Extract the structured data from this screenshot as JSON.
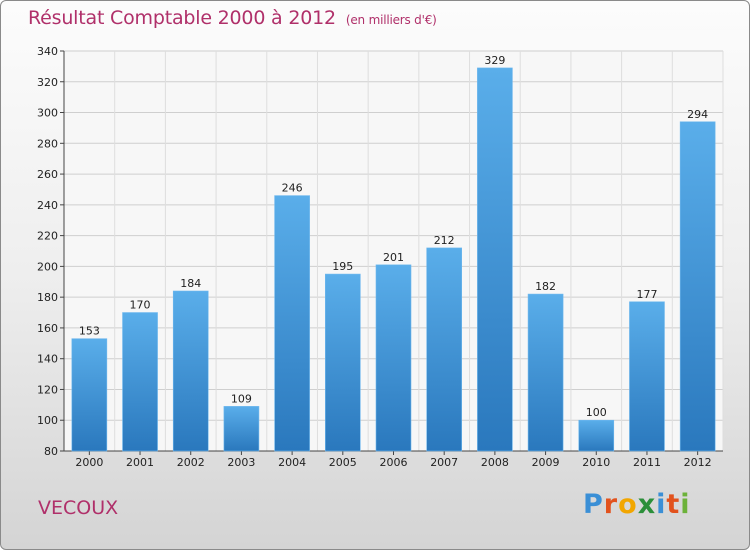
{
  "header": {
    "title": "Résultat Comptable 2000 à 2012",
    "subtitle": "(en milliers d'€)"
  },
  "footer": {
    "commune": "VECOUX",
    "logo_letters": [
      "P",
      "r",
      "o",
      "x",
      "i",
      "t",
      "i"
    ],
    "logo_colors": [
      "#3a8fd6",
      "#e2521d",
      "#f2a600",
      "#2b8f3a",
      "#3a8fd6",
      "#e2521d",
      "#6cb23a"
    ]
  },
  "chart_data": {
    "type": "bar",
    "title": "Résultat Comptable 2000 à 2012",
    "subtitle": "(en milliers d'€)",
    "categories": [
      "2000",
      "2001",
      "2002",
      "2003",
      "2004",
      "2005",
      "2006",
      "2007",
      "2008",
      "2009",
      "2010",
      "2011",
      "2012"
    ],
    "values": [
      153,
      170,
      184,
      109,
      246,
      195,
      201,
      212,
      329,
      182,
      100,
      177,
      294
    ],
    "ylim": [
      80,
      340
    ],
    "yticks": [
      80,
      100,
      120,
      140,
      160,
      180,
      200,
      220,
      240,
      260,
      280,
      300,
      320,
      340
    ],
    "grid": true,
    "bar_color": "#4a9fe0",
    "bar_color_dark": "#2a78bd"
  }
}
